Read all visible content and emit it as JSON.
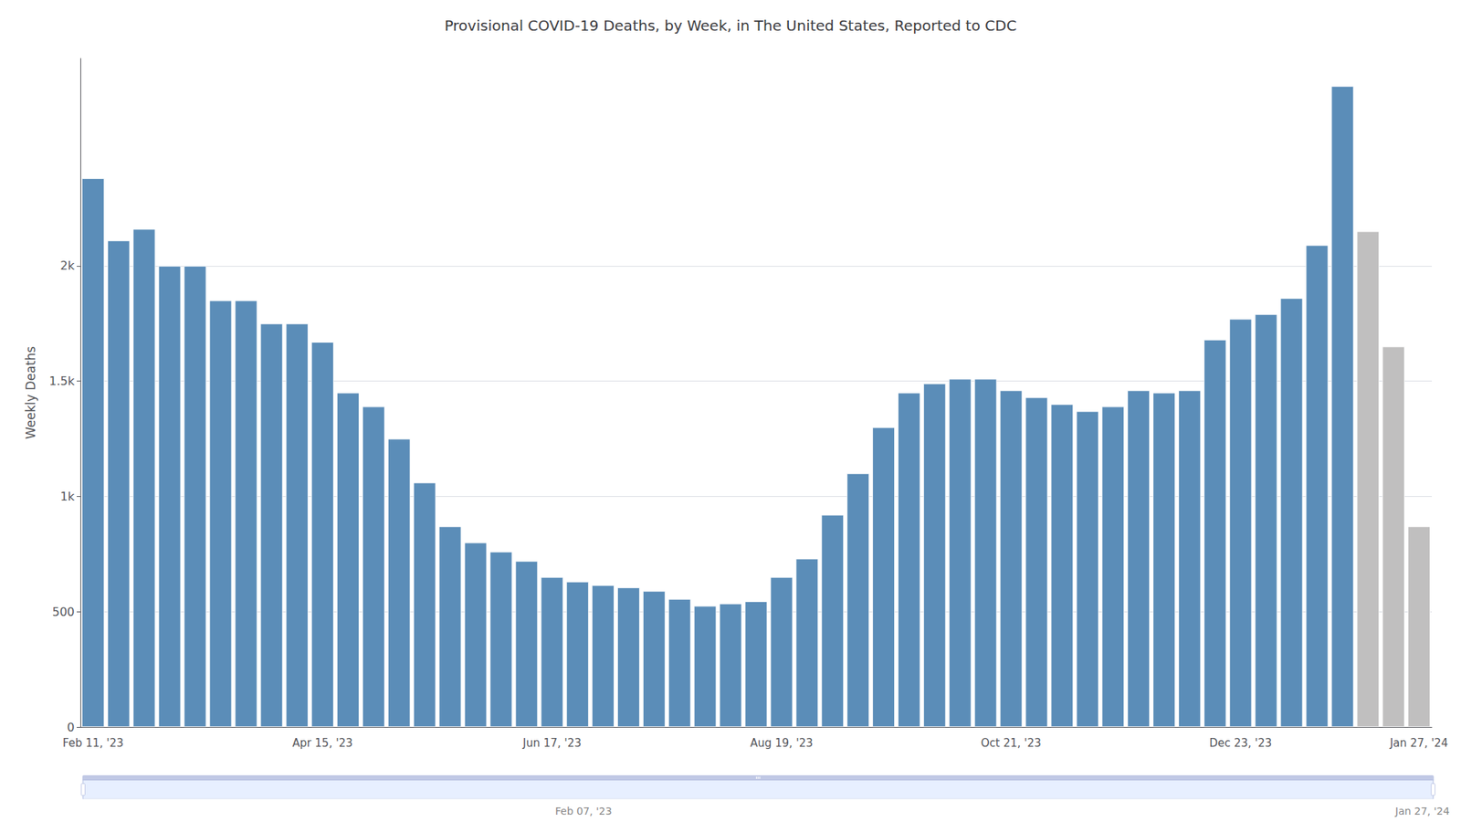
{
  "chart_data": {
    "type": "bar",
    "title": "Provisional COVID-19 Deaths, by Week, in The United States, Reported to CDC",
    "ylabel": "Weekly Deaths",
    "categories": [
      "Feb 11, '23",
      null,
      null,
      null,
      null,
      null,
      null,
      null,
      null,
      "Apr 15, '23",
      null,
      null,
      null,
      null,
      null,
      null,
      null,
      null,
      "Jun 17, '23",
      null,
      null,
      null,
      null,
      null,
      null,
      null,
      null,
      "Aug 19, '23",
      null,
      null,
      null,
      null,
      null,
      null,
      null,
      null,
      "Oct 21, '23",
      null,
      null,
      null,
      null,
      null,
      null,
      null,
      null,
      "Dec 23, '23",
      null,
      null,
      null,
      null,
      null,
      null,
      "Jan 27, '24"
    ],
    "values": [
      2380,
      2110,
      2160,
      2000,
      2000,
      1850,
      1850,
      1750,
      1750,
      1670,
      1450,
      1390,
      1250,
      1060,
      870,
      800,
      760,
      720,
      650,
      630,
      615,
      605,
      590,
      555,
      525,
      535,
      545,
      650,
      730,
      920,
      1100,
      1300,
      1450,
      1490,
      1510,
      1510,
      1460,
      1430,
      1400,
      1370,
      1390,
      1460,
      1450,
      1460,
      1680,
      1770,
      1790,
      1860,
      2090,
      2780,
      2150,
      1650,
      870
    ],
    "colors": [
      "#5b8db8",
      "#5b8db8",
      "#5b8db8",
      "#5b8db8",
      "#5b8db8",
      "#5b8db8",
      "#5b8db8",
      "#5b8db8",
      "#5b8db8",
      "#5b8db8",
      "#5b8db8",
      "#5b8db8",
      "#5b8db8",
      "#5b8db8",
      "#5b8db8",
      "#5b8db8",
      "#5b8db8",
      "#5b8db8",
      "#5b8db8",
      "#5b8db8",
      "#5b8db8",
      "#5b8db8",
      "#5b8db8",
      "#5b8db8",
      "#5b8db8",
      "#5b8db8",
      "#5b8db8",
      "#5b8db8",
      "#5b8db8",
      "#5b8db8",
      "#5b8db8",
      "#5b8db8",
      "#5b8db8",
      "#5b8db8",
      "#5b8db8",
      "#5b8db8",
      "#5b8db8",
      "#5b8db8",
      "#5b8db8",
      "#5b8db8",
      "#5b8db8",
      "#5b8db8",
      "#5b8db8",
      "#5b8db8",
      "#5b8db8",
      "#5b8db8",
      "#5b8db8",
      "#5b8db8",
      "#5b8db8",
      "#5b8db8",
      "#c0bfbf",
      "#c0bfbf",
      "#c0bfbf"
    ],
    "ylim": [
      0,
      2900
    ],
    "yticks": [
      0,
      500,
      {
        "value": 1000,
        "label": "1k"
      },
      {
        "value": 1500,
        "label": "1.5k"
      },
      {
        "value": 2000,
        "label": "2k"
      }
    ],
    "grid": true,
    "annotations": [
      "Feb 07, '23",
      "Jan 27, '24"
    ]
  }
}
